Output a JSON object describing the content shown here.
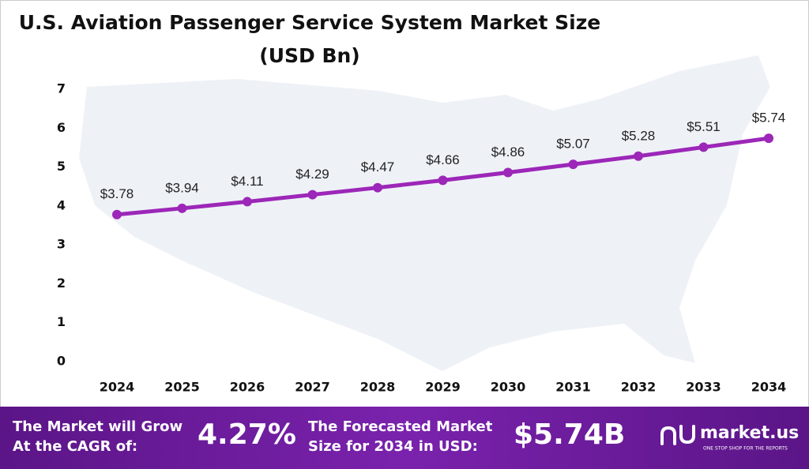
{
  "chart_data": {
    "type": "line",
    "title": "U.S. Aviation Passenger Service System Market Size",
    "subtitle": "(USD Bn)",
    "categories": [
      "2024",
      "2025",
      "2026",
      "2027",
      "2028",
      "2029",
      "2030",
      "2031",
      "2032",
      "2033",
      "2034"
    ],
    "values": [
      3.78,
      3.94,
      4.11,
      4.29,
      4.47,
      4.66,
      4.86,
      5.07,
      5.28,
      5.51,
      5.74
    ],
    "value_labels": [
      "$3.78",
      "$3.94",
      "$4.11",
      "$4.29",
      "$4.47",
      "$4.66",
      "$4.86",
      "$5.07",
      "$5.28",
      "$5.51",
      "$5.74"
    ],
    "color": "#9c27b8",
    "ylim": [
      0,
      7
    ],
    "yticks": [
      0,
      1,
      2,
      3,
      4,
      5,
      6,
      7
    ],
    "grid": false
  },
  "footer": {
    "cagr_text": [
      "The Market will Grow",
      "At the CAGR of:"
    ],
    "cagr": "4.27%",
    "forecast_text": [
      "The Forecasted Market",
      "Size for 2034 in USD:"
    ],
    "forecast": "$5.74B",
    "brand": "market.us",
    "tagline": "ONE STOP SHOP FOR THE REPORTS"
  }
}
